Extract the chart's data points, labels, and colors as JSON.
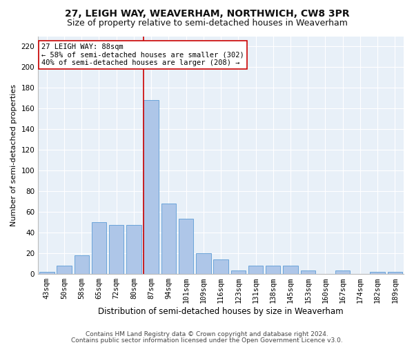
{
  "title1": "27, LEIGH WAY, WEAVERHAM, NORTHWICH, CW8 3PR",
  "title2": "Size of property relative to semi-detached houses in Weaverham",
  "xlabel": "Distribution of semi-detached houses by size in Weaverham",
  "ylabel": "Number of semi-detached properties",
  "footnote1": "Contains HM Land Registry data © Crown copyright and database right 2024.",
  "footnote2": "Contains public sector information licensed under the Open Government Licence v3.0.",
  "categories": [
    "43sqm",
    "50sqm",
    "58sqm",
    "65sqm",
    "72sqm",
    "80sqm",
    "87sqm",
    "94sqm",
    "101sqm",
    "109sqm",
    "116sqm",
    "123sqm",
    "131sqm",
    "138sqm",
    "145sqm",
    "153sqm",
    "160sqm",
    "167sqm",
    "174sqm",
    "182sqm",
    "189sqm"
  ],
  "values": [
    2,
    8,
    18,
    50,
    47,
    47,
    168,
    68,
    53,
    20,
    14,
    3,
    8,
    8,
    8,
    3,
    0,
    3,
    0,
    2,
    2
  ],
  "bar_color": "#aec6e8",
  "bar_edge_color": "#5b9bd5",
  "highlight_index": 6,
  "highlight_line_color": "#cc0000",
  "annotation_line1": "27 LEIGH WAY: 88sqm",
  "annotation_line2": "← 58% of semi-detached houses are smaller (302)",
  "annotation_line3": "40% of semi-detached houses are larger (208) →",
  "annotation_box_color": "#ffffff",
  "annotation_box_edge": "#cc0000",
  "ylim": [
    0,
    230
  ],
  "yticks": [
    0,
    20,
    40,
    60,
    80,
    100,
    120,
    140,
    160,
    180,
    200,
    220
  ],
  "background_color": "#e8f0f8",
  "grid_color": "#ffffff",
  "title1_fontsize": 10,
  "title2_fontsize": 9,
  "xlabel_fontsize": 8.5,
  "ylabel_fontsize": 8,
  "tick_fontsize": 7.5,
  "annot_fontsize": 7.5,
  "footnote_fontsize": 6.5
}
